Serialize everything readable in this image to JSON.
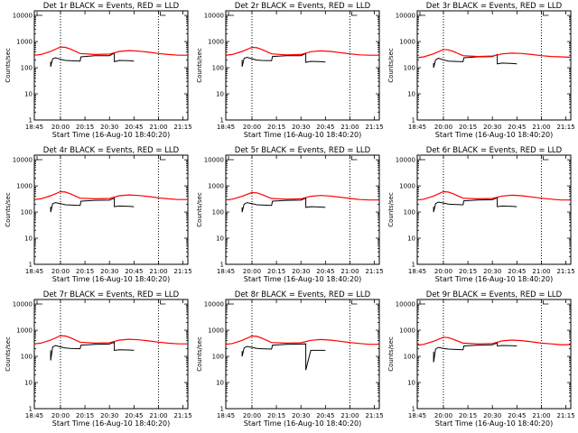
{
  "figure": {
    "x_tick_labels": [
      "18:45",
      "20:00",
      "20:15",
      "20:30",
      "20:45",
      "21:00",
      "21:15"
    ],
    "y_tick_labels": [
      "1",
      "10",
      "100",
      "1000",
      "10000"
    ],
    "colors": {
      "events": "#000000",
      "lld": "#ff0000",
      "axes": "#000000",
      "background": "#ffffff"
    }
  },
  "chart_data": [
    {
      "type": "line",
      "title": "Det 1r BLACK = Events, RED = LLD",
      "xlabel": "Start Time (16-Aug-10 18:40:20)",
      "ylabel": "Counts/sec",
      "xlim": [
        19.733,
        21.3
      ],
      "ylim": [
        1,
        15000
      ],
      "yscale": "log",
      "vlines": [
        20.0,
        21.0
      ],
      "series": [
        {
          "name": "Events",
          "x": [
            19.9,
            19.9,
            19.92,
            19.95,
            20.0,
            20.05,
            20.1,
            20.2,
            20.21,
            20.35,
            20.5,
            20.55,
            20.55,
            20.6,
            20.7,
            20.75,
            20.75
          ],
          "y": [
            170,
            110,
            220,
            240,
            210,
            190,
            185,
            180,
            260,
            290,
            290,
            360,
            170,
            190,
            185,
            180,
            180
          ]
        },
        {
          "name": "LLD",
          "x": [
            19.733,
            19.8,
            19.9,
            20.0,
            20.05,
            20.1,
            20.2,
            20.35,
            20.5,
            20.6,
            20.7,
            20.8,
            20.9,
            21.0,
            21.1,
            21.2,
            21.3
          ],
          "y": [
            300,
            320,
            420,
            620,
            600,
            520,
            350,
            320,
            330,
            420,
            450,
            430,
            390,
            350,
            320,
            300,
            300
          ]
        }
      ]
    },
    {
      "type": "line",
      "title": "Det 2r BLACK = Events, RED = LLD",
      "xlabel": "Start Time (16-Aug-10 18:40:20)",
      "ylabel": "Counts/sec",
      "xlim": [
        19.733,
        21.3
      ],
      "ylim": [
        1,
        15000
      ],
      "yscale": "log",
      "vlines": [
        20.0,
        21.0
      ],
      "series": [
        {
          "name": "Events",
          "x": [
            19.9,
            19.9,
            19.92,
            19.95,
            20.0,
            20.05,
            20.1,
            20.2,
            20.21,
            20.35,
            20.5,
            20.55,
            20.55,
            20.6,
            20.7,
            20.75
          ],
          "y": [
            200,
            110,
            230,
            250,
            220,
            195,
            190,
            185,
            270,
            290,
            290,
            350,
            160,
            175,
            170,
            165
          ]
        },
        {
          "name": "LLD",
          "x": [
            19.733,
            19.8,
            19.9,
            20.0,
            20.05,
            20.1,
            20.2,
            20.35,
            20.5,
            20.6,
            20.7,
            20.8,
            20.9,
            21.0,
            21.1,
            21.2,
            21.3
          ],
          "y": [
            300,
            320,
            420,
            600,
            580,
            500,
            340,
            310,
            320,
            410,
            440,
            420,
            380,
            340,
            310,
            300,
            300
          ]
        }
      ]
    },
    {
      "type": "line",
      "title": "Det 3r BLACK = Events, RED = LLD",
      "xlabel": "Start Time (16-Aug-10 18:40:20)",
      "ylabel": "Counts/sec",
      "xlim": [
        19.733,
        21.3
      ],
      "ylim": [
        1,
        15000
      ],
      "yscale": "log",
      "vlines": [
        20.0,
        21.0
      ],
      "series": [
        {
          "name": "Events",
          "x": [
            19.9,
            19.9,
            19.92,
            19.95,
            20.0,
            20.05,
            20.1,
            20.2,
            20.21,
            20.35,
            20.5,
            20.55,
            20.55,
            20.6,
            20.7,
            20.75
          ],
          "y": [
            150,
            100,
            200,
            230,
            200,
            180,
            175,
            170,
            240,
            260,
            265,
            320,
            140,
            150,
            145,
            140
          ]
        },
        {
          "name": "LLD",
          "x": [
            19.733,
            19.8,
            19.9,
            20.0,
            20.05,
            20.1,
            20.2,
            20.35,
            20.5,
            20.6,
            20.7,
            20.8,
            20.9,
            21.0,
            21.1,
            21.2,
            21.3
          ],
          "y": [
            240,
            260,
            340,
            500,
            480,
            420,
            290,
            270,
            280,
            340,
            360,
            350,
            320,
            290,
            270,
            260,
            250
          ]
        }
      ]
    },
    {
      "type": "line",
      "title": "Det 4r BLACK = Events, RED = LLD",
      "xlabel": "Start Time (16-Aug-10 18:40:20)",
      "ylabel": "Counts/sec",
      "xlim": [
        19.733,
        21.3
      ],
      "ylim": [
        1,
        15000
      ],
      "yscale": "log",
      "vlines": [
        20.0,
        21.0
      ],
      "series": [
        {
          "name": "Events",
          "x": [
            19.9,
            19.9,
            19.92,
            19.95,
            20.0,
            20.05,
            20.1,
            20.2,
            20.21,
            20.35,
            20.5,
            20.55,
            20.55,
            20.6,
            20.7,
            20.75
          ],
          "y": [
            160,
            100,
            210,
            230,
            210,
            190,
            185,
            180,
            260,
            280,
            285,
            340,
            160,
            170,
            165,
            160
          ]
        },
        {
          "name": "LLD",
          "x": [
            19.733,
            19.8,
            19.9,
            20.0,
            20.05,
            20.1,
            20.2,
            20.35,
            20.5,
            20.6,
            20.7,
            20.8,
            20.9,
            21.0,
            21.1,
            21.2,
            21.3
          ],
          "y": [
            300,
            320,
            420,
            600,
            580,
            500,
            340,
            320,
            330,
            420,
            450,
            430,
            390,
            350,
            320,
            300,
            300
          ]
        }
      ]
    },
    {
      "type": "line",
      "title": "Det 5r BLACK = Events, RED = LLD",
      "xlabel": "Start Time (16-Aug-10 18:40:20)",
      "ylabel": "Counts/sec",
      "xlim": [
        19.733,
        21.3
      ],
      "ylim": [
        1,
        15000
      ],
      "yscale": "log",
      "vlines": [
        20.0,
        21.0
      ],
      "series": [
        {
          "name": "Events",
          "x": [
            19.9,
            19.9,
            19.92,
            19.95,
            20.0,
            20.05,
            20.1,
            20.2,
            20.21,
            20.35,
            20.5,
            20.55,
            20.55,
            20.6,
            20.7,
            20.75
          ],
          "y": [
            150,
            100,
            200,
            230,
            210,
            190,
            185,
            180,
            260,
            280,
            285,
            340,
            150,
            160,
            155,
            150
          ]
        },
        {
          "name": "LLD",
          "x": [
            19.733,
            19.8,
            19.9,
            20.0,
            20.05,
            20.1,
            20.2,
            20.35,
            20.5,
            20.6,
            20.7,
            20.8,
            20.9,
            21.0,
            21.1,
            21.2,
            21.3
          ],
          "y": [
            290,
            310,
            400,
            560,
            540,
            470,
            330,
            310,
            320,
            400,
            430,
            410,
            370,
            330,
            300,
            290,
            290
          ]
        }
      ]
    },
    {
      "type": "line",
      "title": "Det 6r BLACK = Events, RED = LLD",
      "xlabel": "Start Time (16-Aug-10 18:40:20)",
      "ylabel": "Counts/sec",
      "xlim": [
        19.733,
        21.3
      ],
      "ylim": [
        1,
        15000
      ],
      "yscale": "log",
      "vlines": [
        20.0,
        21.0
      ],
      "series": [
        {
          "name": "Events",
          "x": [
            19.9,
            19.9,
            19.92,
            19.95,
            20.0,
            20.05,
            20.1,
            20.2,
            20.21,
            20.35,
            20.5,
            20.55,
            20.55,
            20.6,
            20.7,
            20.75
          ],
          "y": [
            160,
            100,
            210,
            240,
            220,
            200,
            195,
            190,
            270,
            290,
            295,
            350,
            160,
            170,
            165,
            160
          ]
        },
        {
          "name": "LLD",
          "x": [
            19.733,
            19.8,
            19.9,
            20.0,
            20.05,
            20.1,
            20.2,
            20.35,
            20.5,
            20.6,
            20.7,
            20.8,
            20.9,
            21.0,
            21.1,
            21.2,
            21.3
          ],
          "y": [
            290,
            310,
            410,
            600,
            580,
            500,
            340,
            320,
            330,
            410,
            440,
            420,
            380,
            340,
            310,
            290,
            290
          ]
        }
      ]
    },
    {
      "type": "line",
      "title": "Det 7r BLACK = Events, RED = LLD",
      "xlabel": "Start Time (16-Aug-10 18:40:20)",
      "ylabel": "Counts/sec",
      "xlim": [
        19.733,
        21.3
      ],
      "ylim": [
        1,
        15000
      ],
      "yscale": "log",
      "vlines": [
        20.0,
        21.0
      ],
      "series": [
        {
          "name": "Events",
          "x": [
            19.9,
            19.9,
            19.92,
            19.95,
            20.0,
            20.05,
            20.1,
            20.2,
            20.21,
            20.35,
            20.5,
            20.55,
            20.55,
            20.6,
            20.7,
            20.75
          ],
          "y": [
            170,
            70,
            230,
            260,
            230,
            210,
            200,
            195,
            270,
            290,
            295,
            350,
            170,
            180,
            175,
            170
          ]
        },
        {
          "name": "LLD",
          "x": [
            19.733,
            19.8,
            19.9,
            20.0,
            20.05,
            20.1,
            20.2,
            20.35,
            20.5,
            20.6,
            20.7,
            20.8,
            20.9,
            21.0,
            21.1,
            21.2,
            21.3
          ],
          "y": [
            300,
            320,
            420,
            620,
            600,
            520,
            350,
            320,
            330,
            420,
            450,
            430,
            390,
            350,
            320,
            300,
            300
          ]
        }
      ]
    },
    {
      "type": "line",
      "title": "Det 8r BLACK = Events, RED = LLD",
      "xlabel": "Start Time (16-Aug-10 18:40:20)",
      "ylabel": "Counts/sec",
      "xlim": [
        19.733,
        21.3
      ],
      "ylim": [
        1,
        15000
      ],
      "yscale": "log",
      "vlines": [
        20.0,
        21.0
      ],
      "series": [
        {
          "name": "Events",
          "x": [
            19.9,
            19.9,
            19.92,
            19.95,
            20.0,
            20.05,
            20.1,
            20.2,
            20.21,
            20.35,
            20.5,
            20.55,
            20.55,
            20.6,
            20.7,
            20.75
          ],
          "y": [
            160,
            100,
            210,
            240,
            220,
            200,
            195,
            190,
            270,
            290,
            295,
            300,
            30,
            170,
            170,
            170
          ]
        },
        {
          "name": "LLD",
          "x": [
            19.733,
            19.8,
            19.9,
            20.0,
            20.05,
            20.1,
            20.2,
            20.35,
            20.5,
            20.6,
            20.7,
            20.8,
            20.9,
            21.0,
            21.1,
            21.2,
            21.3
          ],
          "y": [
            290,
            310,
            410,
            600,
            580,
            500,
            340,
            320,
            330,
            410,
            440,
            420,
            380,
            340,
            310,
            290,
            290
          ]
        }
      ]
    },
    {
      "type": "line",
      "title": "Det 9r BLACK = Events, RED = LLD",
      "xlabel": "Start Time (16-Aug-10 18:40:20)",
      "ylabel": "Counts/sec",
      "xlim": [
        19.733,
        21.3
      ],
      "ylim": [
        1,
        15000
      ],
      "yscale": "log",
      "vlines": [
        20.0,
        21.0
      ],
      "series": [
        {
          "name": "Events",
          "x": [
            19.9,
            19.9,
            19.92,
            19.95,
            20.0,
            20.05,
            20.1,
            20.2,
            20.21,
            20.35,
            20.5,
            20.55,
            20.55,
            20.6,
            20.7,
            20.75
          ],
          "y": [
            150,
            60,
            190,
            220,
            200,
            190,
            185,
            180,
            250,
            270,
            275,
            330,
            250,
            260,
            255,
            250
          ]
        },
        {
          "name": "LLD",
          "x": [
            19.733,
            19.8,
            19.9,
            20.0,
            20.05,
            20.1,
            20.2,
            20.35,
            20.5,
            20.6,
            20.7,
            20.8,
            20.9,
            21.0,
            21.1,
            21.2,
            21.3
          ],
          "y": [
            270,
            290,
            380,
            540,
            520,
            450,
            320,
            300,
            310,
            390,
            420,
            400,
            360,
            320,
            300,
            280,
            280
          ]
        }
      ]
    }
  ]
}
